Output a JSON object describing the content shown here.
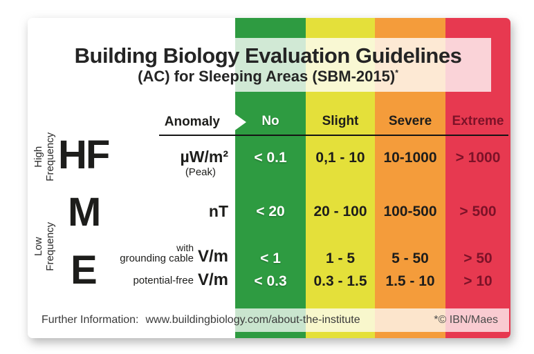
{
  "title": "Building Biology Evaluation Guidelines",
  "subtitle": "(AC) for Sleeping Areas (SBM-2015)",
  "subtitle_marker": "*",
  "colors": {
    "green": "#2e9b41",
    "yellow": "#e4e03a",
    "orange": "#f49c3b",
    "red": "#e73950",
    "dark_red_text": "#7c1228",
    "dark_text": "#1d1d1b"
  },
  "table": {
    "anomaly_label": "Anomaly",
    "severity_headers": [
      "No",
      "Slight",
      "Severe",
      "Extreme"
    ],
    "groups": {
      "high": {
        "letter": "HF",
        "label": "High Frequency"
      },
      "mid": {
        "letter": "M"
      },
      "low": {
        "letter": "E",
        "label": "Low Frequency"
      }
    },
    "rows": [
      {
        "unit": "µW/m²",
        "note": "(Peak)",
        "values": [
          "< 0.1",
          "0,1 - 10",
          "10-1000",
          "> 1000"
        ]
      },
      {
        "unit": "nT",
        "values": [
          "< 20",
          "20 - 100",
          "100-500",
          "> 500"
        ]
      },
      {
        "label_line1": "with",
        "label_line2": "grounding cable",
        "unit": "V/m",
        "values": [
          "< 1",
          "1 - 5",
          "5 - 50",
          "> 50"
        ]
      },
      {
        "label_line2": "potential-free",
        "unit": "V/m",
        "values": [
          "< 0.3",
          "0.3 - 1.5",
          "1.5 - 10",
          "> 10"
        ]
      }
    ]
  },
  "footer": {
    "info_label": "Further Information:",
    "url": "www.buildingbiology.com/about-the-institute",
    "credit": "*© IBN/Maes"
  },
  "chart_data": {
    "type": "table",
    "title": "Building Biology Evaluation Guidelines (AC) for Sleeping Areas (SBM-2015)*",
    "columns": [
      "Anomaly",
      "No",
      "Slight",
      "Severe",
      "Extreme"
    ],
    "column_colors": [
      "#ffffff",
      "#2e9b41",
      "#e4e03a",
      "#f49c3b",
      "#e73950"
    ],
    "rows": [
      {
        "frequency": "High Frequency",
        "symbol": "HF",
        "unit": "µW/m² (Peak)",
        "no": "< 0.1",
        "slight": "0,1 - 10",
        "severe": "10-1000",
        "extreme": "> 1000"
      },
      {
        "frequency": "Low Frequency",
        "symbol": "M",
        "unit": "nT",
        "no": "< 20",
        "slight": "20 - 100",
        "severe": "100-500",
        "extreme": "> 500"
      },
      {
        "frequency": "Low Frequency",
        "symbol": "E",
        "unit": "V/m with grounding cable",
        "no": "< 1",
        "slight": "1 - 5",
        "severe": "5 - 50",
        "extreme": "> 50"
      },
      {
        "frequency": "Low Frequency",
        "symbol": "E",
        "unit": "V/m potential-free",
        "no": "< 0.3",
        "slight": "0.3 - 1.5",
        "severe": "1.5 - 10",
        "extreme": "> 10"
      }
    ],
    "legend_position": "top",
    "notes": "Severity columns shaded green (No), yellow (Slight), orange (Severe), red (Extreme)"
  }
}
